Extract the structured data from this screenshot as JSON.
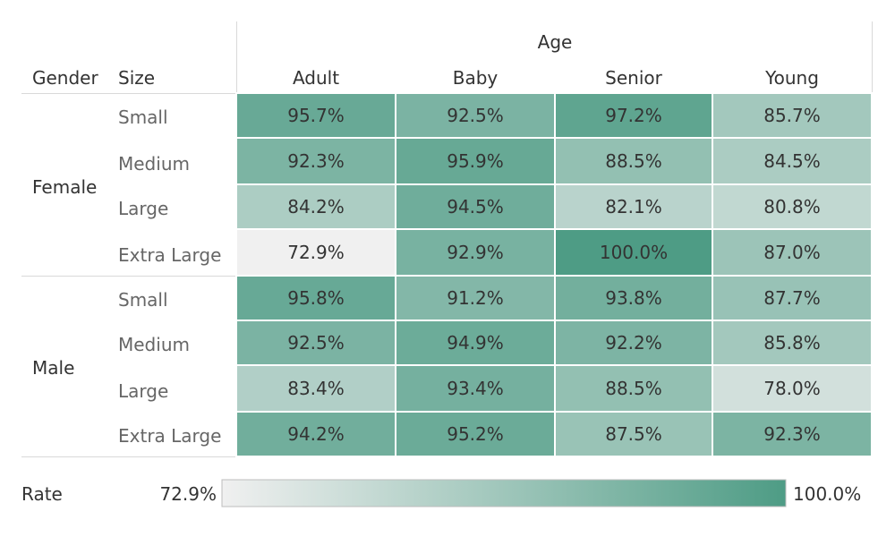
{
  "chart_data": {
    "type": "heatmap",
    "column_group_label": "Age",
    "row_dim_labels": [
      "Gender",
      "Size"
    ],
    "columns": [
      "Adult",
      "Baby",
      "Senior",
      "Young"
    ],
    "groups": [
      {
        "name": "Female",
        "sizes": [
          "Small",
          "Medium",
          "Large",
          "Extra Large"
        ]
      },
      {
        "name": "Male",
        "sizes": [
          "Small",
          "Medium",
          "Large",
          "Extra Large"
        ]
      }
    ],
    "values": [
      [
        95.7,
        92.5,
        97.2,
        85.7
      ],
      [
        92.3,
        95.9,
        88.5,
        84.5
      ],
      [
        84.2,
        94.5,
        82.1,
        80.8
      ],
      [
        72.9,
        92.9,
        100.0,
        87.0
      ],
      [
        95.8,
        91.2,
        93.8,
        87.7
      ],
      [
        92.5,
        94.9,
        92.2,
        85.8
      ],
      [
        83.4,
        93.4,
        88.5,
        78.0
      ],
      [
        94.2,
        95.2,
        87.5,
        92.3
      ]
    ],
    "labels": [
      [
        "95.7%",
        "92.5%",
        "97.2%",
        "85.7%"
      ],
      [
        "92.3%",
        "95.9%",
        "88.5%",
        "84.5%"
      ],
      [
        "84.2%",
        "94.5%",
        "82.1%",
        "80.8%"
      ],
      [
        "72.9%",
        "92.9%",
        "100.0%",
        "87.0%"
      ],
      [
        "95.8%",
        "91.2%",
        "93.8%",
        "87.7%"
      ],
      [
        "92.5%",
        "94.9%",
        "92.2%",
        "85.8%"
      ],
      [
        "83.4%",
        "93.4%",
        "88.5%",
        "78.0%"
      ],
      [
        "94.2%",
        "95.2%",
        "87.5%",
        "92.3%"
      ]
    ],
    "legend": {
      "title": "Rate",
      "min_label": "72.9%",
      "max_label": "100.0%",
      "min": 72.9,
      "max": 100.0,
      "color_low": "#f0f0f0",
      "color_high": "#4e9c85"
    }
  }
}
